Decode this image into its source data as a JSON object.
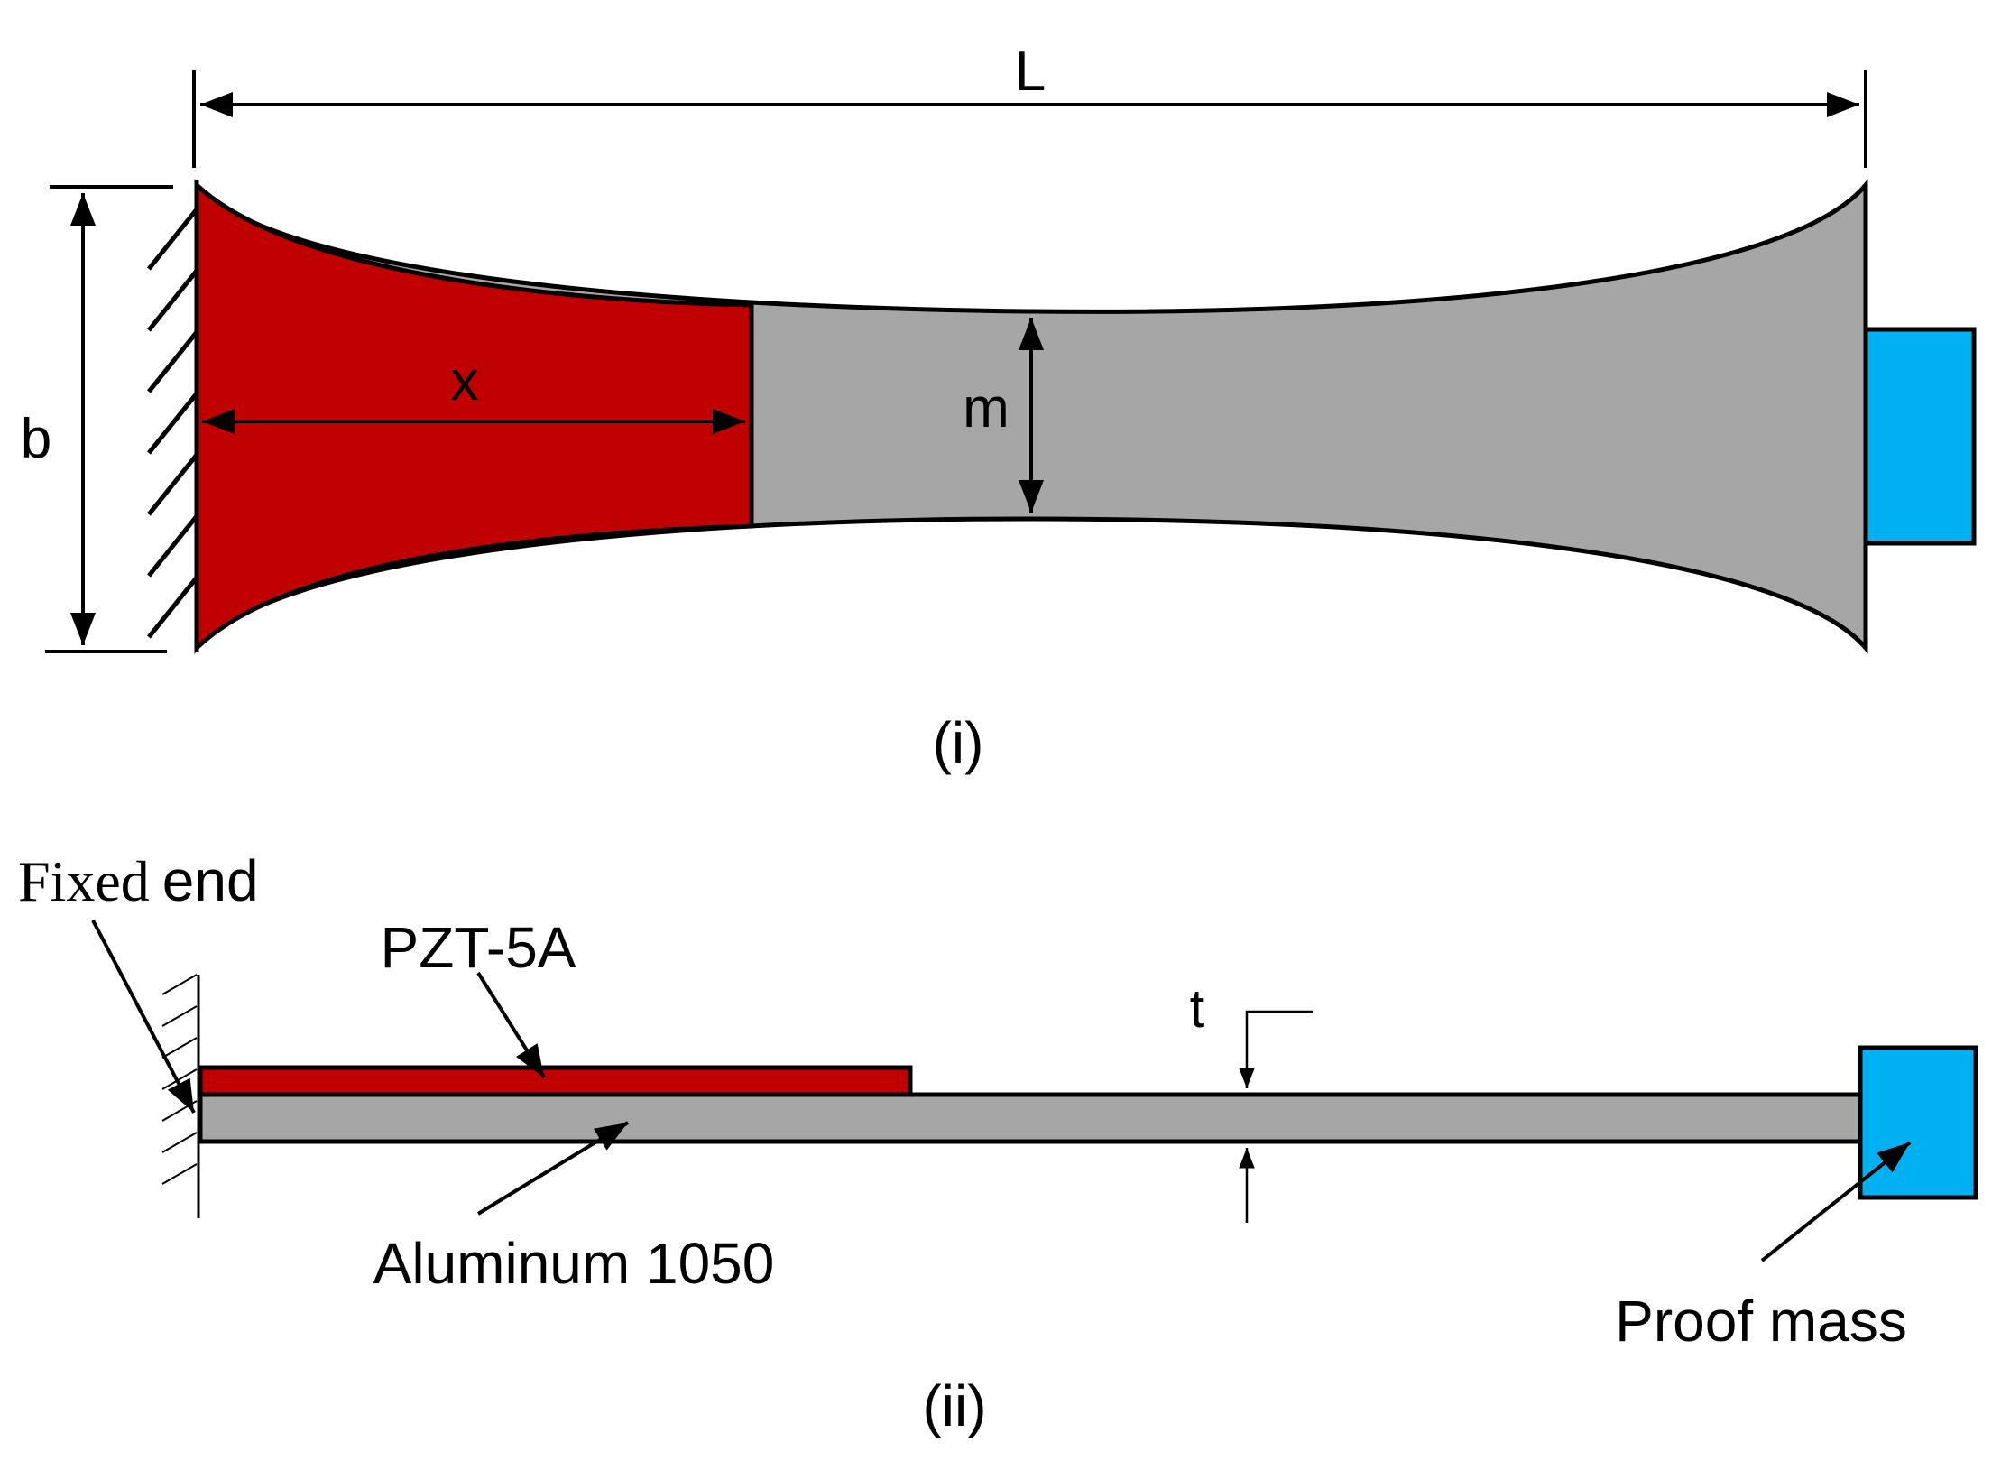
{
  "diagram": {
    "part_i": {
      "caption": "(i)",
      "labels": {
        "length": "L",
        "width": "b",
        "piezo_length": "x",
        "min_width": "m"
      }
    },
    "part_ii": {
      "caption": "(ii)",
      "labels": {
        "fixed_end_serif": "Fixed",
        "fixed_end_sans": "end",
        "piezo_layer": "PZT-5A",
        "thickness": "t",
        "substrate": "Aluminum 1050",
        "proof_mass": "Proof mass"
      }
    },
    "colors": {
      "piezo": "#c00000",
      "substrate": "#a6a6a6",
      "proof_mass": "#00b0f0",
      "line": "#000000"
    }
  }
}
